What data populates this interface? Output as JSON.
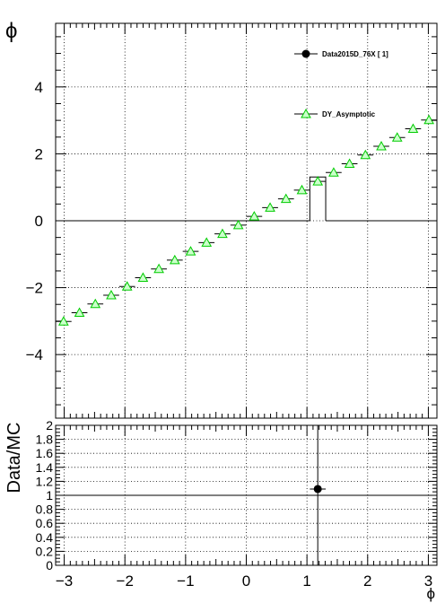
{
  "chart_data": [
    {
      "type": "scatter",
      "panel": "main",
      "xlabel": "",
      "ylabel": "ϕ",
      "xlim": [
        -3.14159,
        3.14159
      ],
      "ylim": [
        -5.9,
        5.9
      ],
      "xticks": [
        -3,
        -2,
        -1,
        0,
        1,
        2,
        3
      ],
      "xtick_labels": [
        "−3",
        "−2",
        "−1",
        "0",
        "1",
        "2",
        "3"
      ],
      "yticks": [
        -4,
        -2,
        0,
        2,
        4
      ],
      "ytick_labels": [
        "−4",
        "−2",
        "0",
        "2",
        "4"
      ],
      "grid": true,
      "legend_position": "top-right",
      "series": [
        {
          "name": "Data2015D_76X [       1]",
          "kind": "histogram",
          "color": "#000000",
          "marker": "circle",
          "bin_edges": [
            1.0472,
            1.309
          ],
          "values": [
            1.309
          ],
          "baseline": 0,
          "baseline_span": [
            -3.14159,
            3.14159
          ]
        },
        {
          "name": "DY_Asymptotic",
          "kind": "points",
          "color": "#00cc00",
          "fill": "#ccffcc",
          "marker": "triangle",
          "x": [
            -3.0107,
            -2.7489,
            -2.4871,
            -2.2253,
            -1.9635,
            -1.7017,
            -1.4399,
            -1.1781,
            -0.9163,
            -0.6545,
            -0.3927,
            -0.1309,
            0.1309,
            0.3927,
            0.6545,
            0.9163,
            1.1781,
            1.4399,
            1.7017,
            1.9635,
            2.2253,
            2.4871,
            2.7489,
            3.0107
          ],
          "y": [
            -3.0107,
            -2.7489,
            -2.4871,
            -2.2253,
            -1.9635,
            -1.7017,
            -1.4399,
            -1.1781,
            -0.9163,
            -0.6545,
            -0.3927,
            -0.1309,
            0.1309,
            0.3927,
            0.6545,
            0.9163,
            1.1781,
            1.4399,
            1.7017,
            1.9635,
            2.2253,
            2.4871,
            2.7489,
            3.0107
          ],
          "x_half_width": 0.1309
        }
      ]
    },
    {
      "type": "scatter",
      "panel": "ratio",
      "xlabel": "ϕ",
      "ylabel": "Data/MC",
      "xlim": [
        -3.14159,
        3.14159
      ],
      "ylim": [
        0,
        2
      ],
      "xticks": [
        -3,
        -2,
        -1,
        0,
        1,
        2,
        3
      ],
      "xtick_labels": [
        "−3",
        "−2",
        "−1",
        "0",
        "1",
        "2",
        "3"
      ],
      "yticks": [
        0,
        0.2,
        0.4,
        0.6,
        0.8,
        1,
        1.2,
        1.4,
        1.6,
        1.8,
        2
      ],
      "ytick_labels": [
        "0",
        "0.2",
        "0.4",
        "0.6",
        "0.8",
        "1",
        "1.2",
        "1.4",
        "1.6",
        "1.8",
        "2"
      ],
      "reference_line": 1,
      "grid": true,
      "series": [
        {
          "name": "Data/MC",
          "color": "#000000",
          "marker": "circle",
          "x": [
            1.1781
          ],
          "y": [
            1.09
          ],
          "x_half_width": 0.1309,
          "y_error_extends_beyond_axis": true
        }
      ]
    }
  ]
}
